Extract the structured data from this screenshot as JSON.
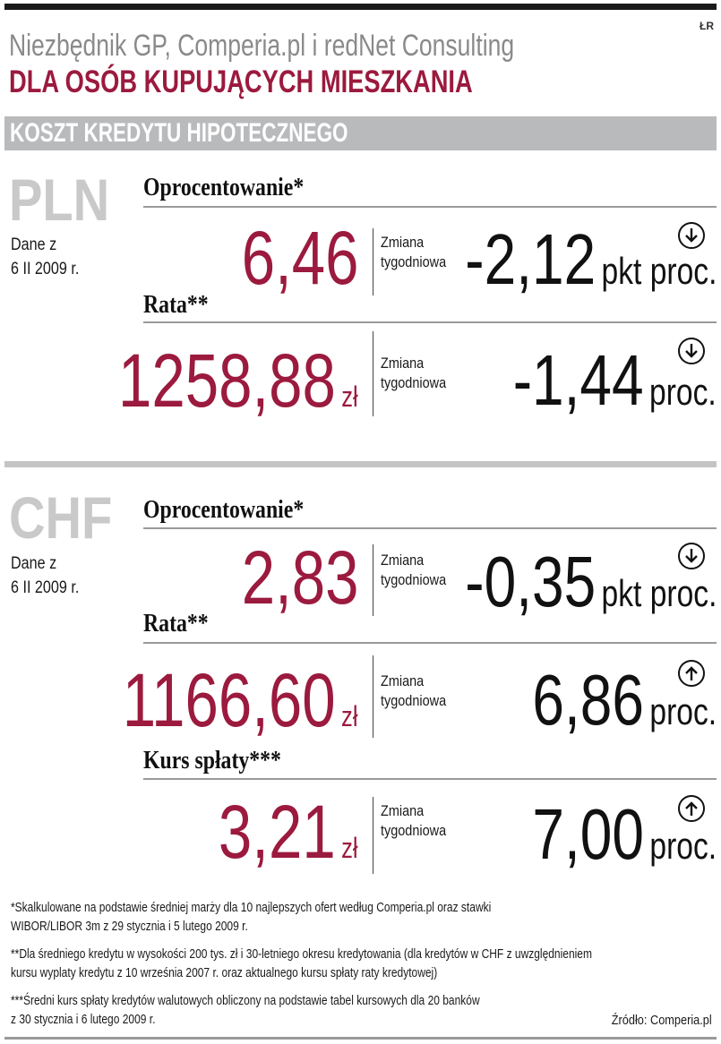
{
  "header": {
    "author": "ŁR",
    "subtitle": "Niezbędnik GP, Comperia.pl i redNet Consulting",
    "title": "DLA OSÓB KUPUJĄCYCH MIESZKANIA",
    "band": "KOSZT KREDYTU HIPOTECZNEGO"
  },
  "colors": {
    "accent": "#9b1a3e",
    "band": "#b9babc",
    "currency": "#c9c9c9"
  },
  "change_label": [
    "Zmiana",
    "tygodniowa"
  ],
  "pln": {
    "currency": "PLN",
    "date": [
      "Dane z",
      "6 II 2009 r."
    ],
    "rate": {
      "heading": "Oprocentowanie*",
      "value": "6,46",
      "unit": "",
      "change": "-2,12",
      "change_unit": "pkt proc.",
      "direction": "down",
      "icon": "arrow-down-circle-icon"
    },
    "installment": {
      "heading": "Rata**",
      "value": "1258,88",
      "unit": "zł",
      "change": "-1,44",
      "change_unit": "proc.",
      "direction": "down",
      "icon": "arrow-down-circle-icon"
    }
  },
  "chf": {
    "currency": "CHF",
    "date": [
      "Dane z",
      "6 II 2009 r."
    ],
    "rate": {
      "heading": "Oprocentowanie*",
      "value": "2,83",
      "unit": "",
      "change": "-0,35",
      "change_unit": "pkt proc.",
      "direction": "down",
      "icon": "arrow-down-circle-icon"
    },
    "installment": {
      "heading": "Rata**",
      "value": "1166,60",
      "unit": "zł",
      "change": "6,86",
      "change_unit": "proc.",
      "direction": "up",
      "icon": "arrow-up-circle-icon"
    },
    "exchange": {
      "heading": "Kurs spłaty***",
      "value": "3,21",
      "unit": "zł",
      "change": "7,00",
      "change_unit": "proc.",
      "direction": "up",
      "icon": "arrow-up-circle-icon"
    }
  },
  "footnotes": [
    [
      "*Skalkulowane na podstawie średniej marży dla 10 najlepszych ofert według Comperia.pl oraz stawki",
      "WIBOR/LIBOR 3m z 29 stycznia i 5 lutego 2009 r."
    ],
    [
      "**Dla średniego kredytu w wysokości 200 tys. zł i 30-letniego okresu kredytowania (dla kredytów w CHF z uwzględnieniem",
      "kursu wyplaty kredytu z 10 września 2007 r. oraz aktualnego kursu spłaty raty kredytowej)"
    ],
    [
      "***Średni kurs spłaty kredytów walutowych obliczony na podstawie tabel kursowych dla 20 banków",
      "z 30 stycznia i 6 lutego 2009 r."
    ]
  ],
  "source": "Źródło: Comperia.pl"
}
